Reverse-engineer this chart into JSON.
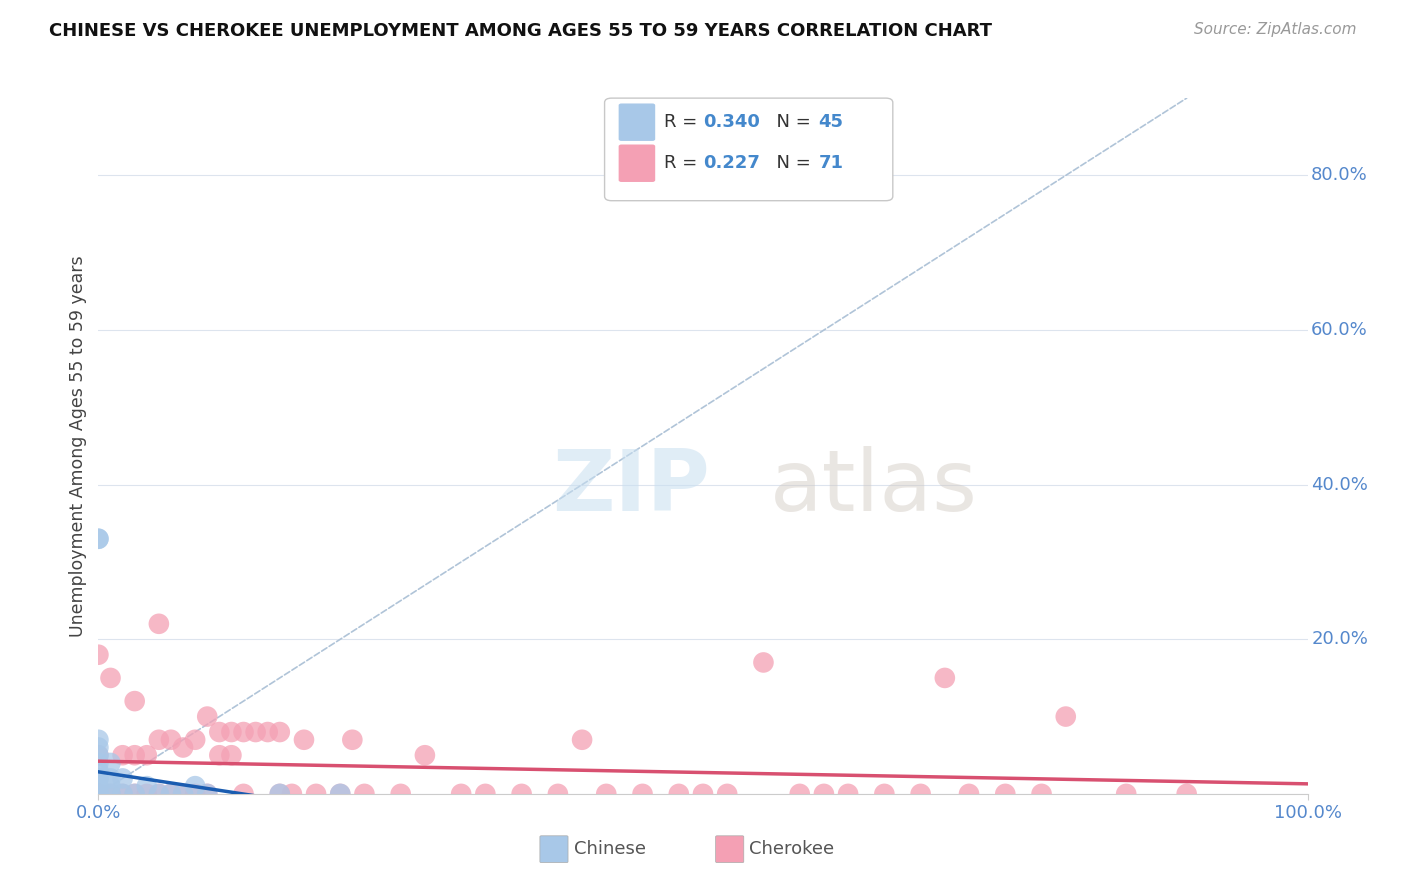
{
  "title": "CHINESE VS CHEROKEE UNEMPLOYMENT AMONG AGES 55 TO 59 YEARS CORRELATION CHART",
  "source": "Source: ZipAtlas.com",
  "ylabel": "Unemployment Among Ages 55 to 59 years",
  "ytick_values": [
    0.0,
    0.2,
    0.4,
    0.6,
    0.8
  ],
  "xlim": [
    0.0,
    1.0
  ],
  "ylim": [
    0.0,
    0.9
  ],
  "chinese_color": "#a8c8e8",
  "cherokee_color": "#f4a0b4",
  "chinese_trend_color": "#1a5cb0",
  "cherokee_trend_color": "#d85070",
  "diagonal_color": "#b0c4d8",
  "background_color": "#ffffff",
  "chinese_R": 0.34,
  "chinese_N": 45,
  "cherokee_R": 0.227,
  "cherokee_N": 71,
  "chinese_x": [
    0.0,
    0.0,
    0.0,
    0.0,
    0.0,
    0.0,
    0.0,
    0.0,
    0.0,
    0.0,
    0.0,
    0.0,
    0.0,
    0.0,
    0.0,
    0.0,
    0.0,
    0.0,
    0.0,
    0.0,
    0.0,
    0.0,
    0.0,
    0.0,
    0.0,
    0.0,
    0.0,
    0.0,
    0.0,
    0.0,
    0.01,
    0.01,
    0.01,
    0.01,
    0.02,
    0.02,
    0.03,
    0.04,
    0.05,
    0.06,
    0.07,
    0.08,
    0.09,
    0.15,
    0.2
  ],
  "chinese_y": [
    0.0,
    0.0,
    0.0,
    0.0,
    0.0,
    0.0,
    0.0,
    0.0,
    0.0,
    0.0,
    0.0,
    0.0,
    0.0,
    0.0,
    0.0,
    0.0,
    0.0,
    0.0,
    0.0,
    0.01,
    0.01,
    0.02,
    0.02,
    0.03,
    0.04,
    0.05,
    0.06,
    0.07,
    0.33,
    0.33,
    0.0,
    0.01,
    0.02,
    0.04,
    0.0,
    0.02,
    0.0,
    0.01,
    0.0,
    0.0,
    0.0,
    0.01,
    0.0,
    0.0,
    0.0
  ],
  "cherokee_x": [
    0.0,
    0.0,
    0.0,
    0.0,
    0.0,
    0.0,
    0.0,
    0.0,
    0.0,
    0.0,
    0.01,
    0.01,
    0.02,
    0.02,
    0.03,
    0.03,
    0.03,
    0.04,
    0.04,
    0.05,
    0.05,
    0.05,
    0.06,
    0.06,
    0.07,
    0.07,
    0.08,
    0.08,
    0.09,
    0.09,
    0.1,
    0.1,
    0.11,
    0.11,
    0.12,
    0.12,
    0.13,
    0.14,
    0.15,
    0.15,
    0.16,
    0.17,
    0.18,
    0.2,
    0.21,
    0.22,
    0.25,
    0.27,
    0.3,
    0.32,
    0.35,
    0.38,
    0.4,
    0.42,
    0.45,
    0.48,
    0.5,
    0.52,
    0.55,
    0.58,
    0.6,
    0.62,
    0.65,
    0.68,
    0.7,
    0.72,
    0.75,
    0.78,
    0.8,
    0.85,
    0.9
  ],
  "cherokee_y": [
    0.0,
    0.0,
    0.0,
    0.0,
    0.0,
    0.0,
    0.0,
    0.0,
    0.05,
    0.18,
    0.0,
    0.15,
    0.0,
    0.05,
    0.0,
    0.05,
    0.12,
    0.0,
    0.05,
    0.0,
    0.07,
    0.22,
    0.0,
    0.07,
    0.0,
    0.06,
    0.0,
    0.07,
    0.0,
    0.1,
    0.05,
    0.08,
    0.05,
    0.08,
    0.0,
    0.08,
    0.08,
    0.08,
    0.0,
    0.08,
    0.0,
    0.07,
    0.0,
    0.0,
    0.07,
    0.0,
    0.0,
    0.05,
    0.0,
    0.0,
    0.0,
    0.0,
    0.07,
    0.0,
    0.0,
    0.0,
    0.0,
    0.0,
    0.17,
    0.0,
    0.0,
    0.0,
    0.0,
    0.0,
    0.15,
    0.0,
    0.0,
    0.0,
    0.1,
    0.0,
    0.0
  ],
  "watermark_zip": "ZIP",
  "watermark_atlas": "atlas",
  "legend_text_color": "#4488cc",
  "grid_color": "#dde4ee",
  "axis_label_color": "#5588cc"
}
